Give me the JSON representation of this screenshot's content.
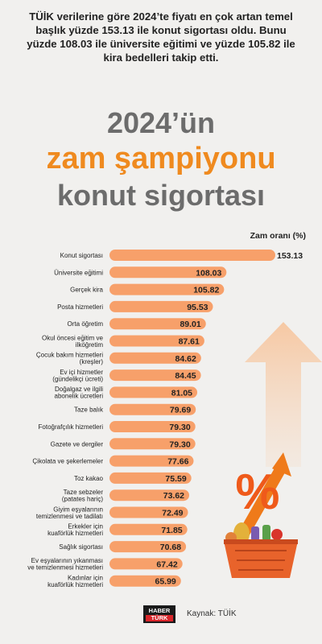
{
  "intro": "TÜİK verilerine göre 2024’te fiyatı en çok artan temel başlık yüzde 153.13 ile konut sigortası oldu. Bunu yüzde 108.03 ile üniversite eğitimi ve yüzde 105.82 ile kira bedelleri takip etti.",
  "headline": {
    "line1": "2024’ün",
    "line2": "zam şampiyonu",
    "line3": "konut sigortası"
  },
  "colors": {
    "bar": "#f7a06a",
    "accent": "#ef8a1f",
    "gray": "#6c6c6c",
    "background": "#f1f0ee"
  },
  "chart_data": {
    "type": "bar",
    "orientation": "horizontal",
    "value_header": "Zam oranı (%)",
    "categories": [
      [
        "Konut sigortası"
      ],
      [
        "Üniversite eğitimi"
      ],
      [
        "Gerçek kira"
      ],
      [
        "Posta hizmetleri"
      ],
      [
        "Orta öğretim"
      ],
      [
        "Okul öncesi eğitim ve",
        "ilköğretim"
      ],
      [
        "Çocuk bakım hizmetleri",
        "(kreşler)"
      ],
      [
        "Ev içi hizmetler",
        "(gündelikçi ücreti)"
      ],
      [
        "Doğalgaz ve ilgili",
        "abonelik ücretleri"
      ],
      [
        "Taze balık"
      ],
      [
        "Fotoğrafçılık hizmetleri"
      ],
      [
        "Gazete ve dergiler"
      ],
      [
        "Çikolata ve şekerlemeler"
      ],
      [
        "Toz kakao"
      ],
      [
        "Taze sebzeler",
        "(patates hariç)"
      ],
      [
        "Giyim eşyalarının",
        "temizlenmesi ve tadilatı"
      ],
      [
        "Erkekler için",
        "kuaförlük hizmetleri"
      ],
      [
        "Sağlık sigortası"
      ],
      [
        "Ev eşyalarının yıkanması",
        "ve temizlenmesi hizmetleri"
      ],
      [
        "Kadınlar için",
        "kuaförlük hizmetleri"
      ]
    ],
    "values": [
      153.13,
      108.03,
      105.82,
      95.53,
      89.01,
      87.61,
      84.62,
      84.45,
      81.05,
      79.69,
      79.3,
      79.3,
      77.66,
      75.59,
      73.62,
      72.49,
      71.85,
      70.68,
      67.42,
      65.99
    ],
    "value_labels": [
      "153.13",
      "108.03",
      "105.82",
      "95.53",
      "89.01",
      "87.61",
      "84.62",
      "84.45",
      "81.05",
      "79.69",
      "79.30",
      "79.30",
      "77.66",
      "75.59",
      "73.62",
      "72.49",
      "71.85",
      "70.68",
      "67.42",
      "65.99"
    ]
  },
  "footer": {
    "logo_top": "HABER",
    "logo_bottom": "TÜRK",
    "source": "Kaynak: TÜİK"
  },
  "icons": [
    "up-arrow-icon",
    "percent-icon",
    "shopping-basket-icon"
  ]
}
